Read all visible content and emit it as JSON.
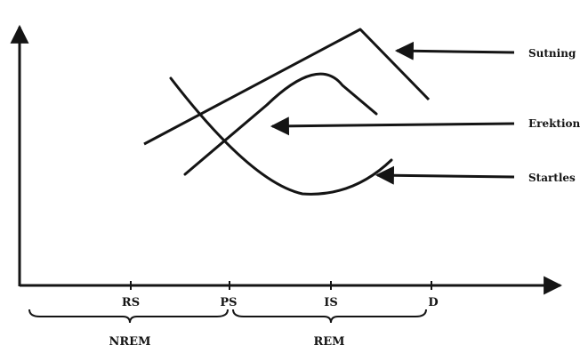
{
  "stages": [
    "RS",
    "PS",
    "IS",
    "D"
  ],
  "phases": [
    "NREM",
    "REM"
  ],
  "curves": [
    {
      "label": "Sutning",
      "trend": "rises steadily, peaks after IS, then falls"
    },
    {
      "label": "Erektion",
      "trend": "rises from PS, peaks near IS, then falls"
    },
    {
      "label": "Startles",
      "trend": "falls from RS, lowest at IS, then rises"
    }
  ],
  "colors": {
    "ink": "#141414",
    "background": "#ffffff"
  }
}
